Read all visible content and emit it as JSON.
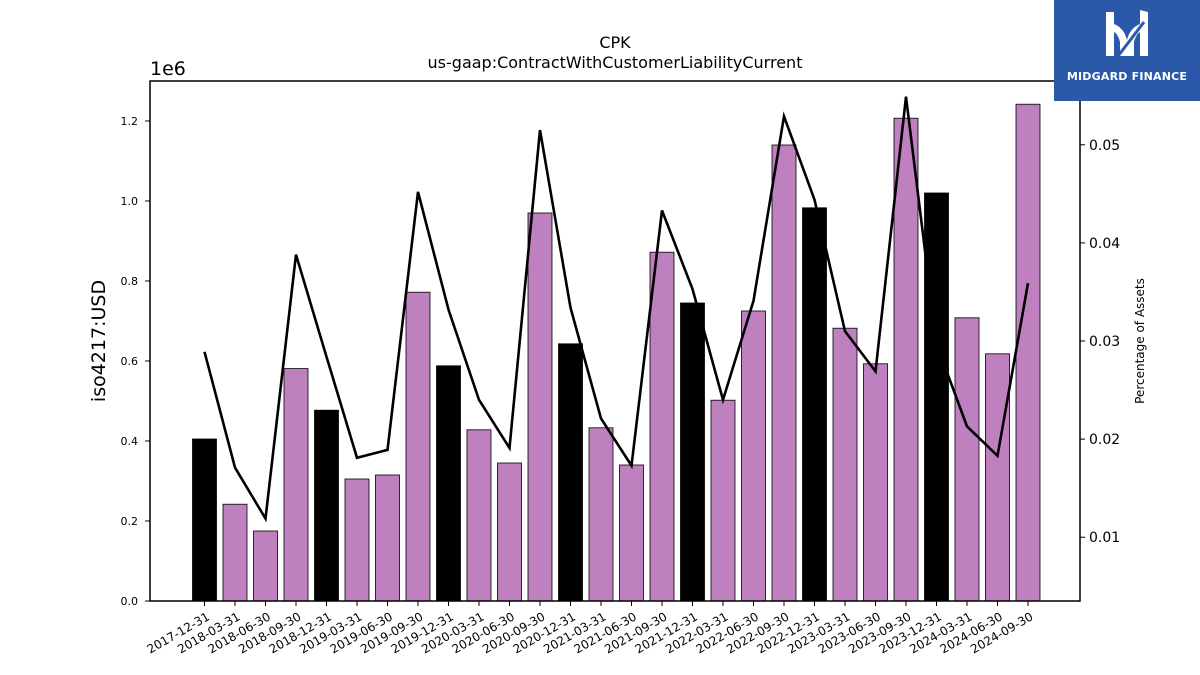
{
  "chart_data": {
    "type": "bar",
    "title": "CPK",
    "subtitle": "us-gaap:ContractWithCustomerLiabilityCurrent",
    "ylabel": "iso4217:USD",
    "y_offset_label": "1e6",
    "y2label": "Percentage of Assets",
    "ylim": [
      0,
      1.3
    ],
    "y2lim": [
      0.0035,
      0.0565
    ],
    "yticks": [
      "0.0",
      "0.2",
      "0.4",
      "0.6",
      "0.8",
      "1.0",
      "1.2"
    ],
    "y2ticks": [
      "0.01",
      "0.02",
      "0.03",
      "0.04",
      "0.05"
    ],
    "grid": false,
    "categories": [
      "2017-12-31",
      "2018-03-31",
      "2018-06-30",
      "2018-09-30",
      "2018-12-31",
      "2019-03-31",
      "2019-06-30",
      "2019-09-30",
      "2019-12-31",
      "2020-03-31",
      "2020-06-30",
      "2020-09-30",
      "2020-12-31",
      "2021-03-31",
      "2021-06-30",
      "2021-09-30",
      "2021-12-31",
      "2022-03-31",
      "2022-06-30",
      "2022-09-30",
      "2022-12-31",
      "2023-03-31",
      "2023-06-30",
      "2023-09-30",
      "2023-12-31",
      "2024-03-31",
      "2024-06-30",
      "2024-09-30"
    ],
    "series": [
      {
        "values": [
          0.405,
          0.242,
          0.175,
          0.581,
          0.477,
          0.305,
          0.315,
          0.772,
          0.588,
          0.428,
          0.345,
          0.97,
          0.643,
          0.433,
          0.34,
          0.872,
          0.745,
          0.502,
          0.725,
          1.14,
          0.983,
          0.682,
          0.593,
          1.207,
          1.02,
          0.708,
          0.618,
          1.242
        ]
      },
      {
        "values": [
          0.0289,
          0.0171,
          0.0119,
          0.0388,
          0.0284,
          0.0181,
          0.0189,
          0.0452,
          0.0332,
          0.024,
          0.0191,
          0.0515,
          0.0334,
          0.0221,
          0.0173,
          0.0433,
          0.0353,
          0.024,
          0.0341,
          0.0529,
          0.0444,
          0.031,
          0.0269,
          0.0549,
          0.0297,
          0.0213,
          0.0183,
          0.0359
        ]
      }
    ],
    "bar_colors": {
      "year_end": "#000000",
      "quarter": "#bf80bf"
    },
    "line_color": "#000000"
  },
  "logo": {
    "text": "MIDGARD FINANCE",
    "icon": "midgard-logo-icon"
  }
}
